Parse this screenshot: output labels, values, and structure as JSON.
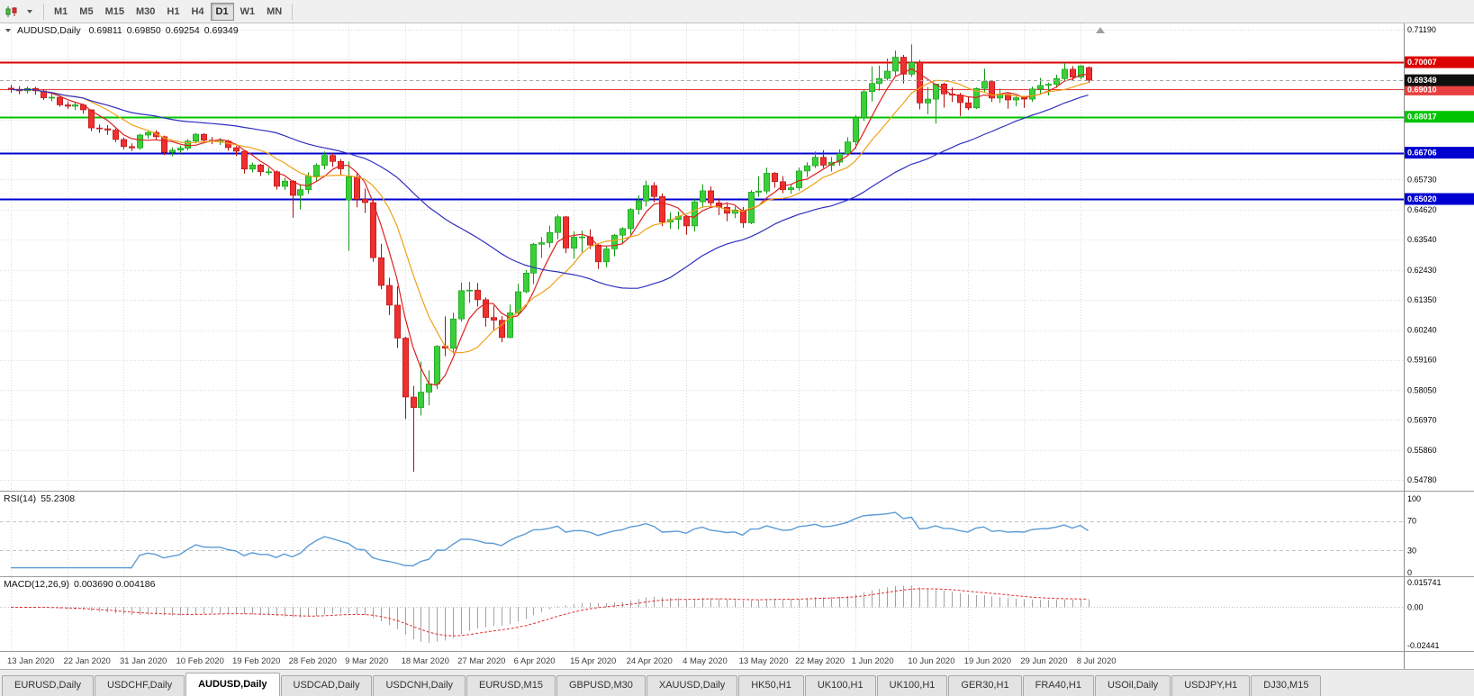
{
  "toolbar": {
    "timeframes": [
      "M1",
      "M5",
      "M15",
      "M30",
      "H1",
      "H4",
      "D1",
      "W1",
      "MN"
    ],
    "active_timeframe": "D1"
  },
  "chart_data": {
    "type": "candlestick",
    "symbol": "AUDUSD,Daily",
    "ohlc_display": {
      "open": "0.69811",
      "high": "0.69850",
      "low": "0.69254",
      "close": "0.69349"
    },
    "ylim": [
      0.54387,
      0.7142
    ],
    "y_ticks": [
      "0.71190",
      "0.65730",
      "0.64620",
      "0.63540",
      "0.62430",
      "0.61350",
      "0.60240",
      "0.59160",
      "0.58050",
      "0.56970",
      "0.55860",
      "0.54780"
    ],
    "x_labels": [
      {
        "index": 0,
        "label": "13 Jan 2020"
      },
      {
        "index": 7,
        "label": "22 Jan 2020"
      },
      {
        "index": 14,
        "label": "31 Jan 2020"
      },
      {
        "index": 21,
        "label": "10 Feb 2020"
      },
      {
        "index": 28,
        "label": "19 Feb 2020"
      },
      {
        "index": 35,
        "label": "28 Feb 2020"
      },
      {
        "index": 42,
        "label": "9 Mar 2020"
      },
      {
        "index": 49,
        "label": "18 Mar 2020"
      },
      {
        "index": 56,
        "label": "27 Mar 2020"
      },
      {
        "index": 63,
        "label": "6 Apr 2020"
      },
      {
        "index": 70,
        "label": "15 Apr 2020"
      },
      {
        "index": 77,
        "label": "24 Apr 2020"
      },
      {
        "index": 84,
        "label": "4 May 2020"
      },
      {
        "index": 91,
        "label": "13 May 2020"
      },
      {
        "index": 98,
        "label": "22 May 2020"
      },
      {
        "index": 105,
        "label": "1 Jun 2020"
      },
      {
        "index": 112,
        "label": "10 Jun 2020"
      },
      {
        "index": 119,
        "label": "19 Jun 2020"
      },
      {
        "index": 126,
        "label": "29 Jun 2020"
      },
      {
        "index": 133,
        "label": "8 Jul 2020"
      }
    ],
    "candles": [
      [
        0.6906,
        0.6918,
        0.6889,
        0.6902
      ],
      [
        0.6902,
        0.6913,
        0.6884,
        0.6896
      ],
      [
        0.6896,
        0.6912,
        0.6887,
        0.6905
      ],
      [
        0.6905,
        0.6911,
        0.6882,
        0.6896
      ],
      [
        0.6896,
        0.6902,
        0.6863,
        0.6871
      ],
      [
        0.6871,
        0.6889,
        0.6858,
        0.6873
      ],
      [
        0.6873,
        0.6879,
        0.6838,
        0.6845
      ],
      [
        0.6845,
        0.6858,
        0.683,
        0.684
      ],
      [
        0.684,
        0.6856,
        0.6826,
        0.6845
      ],
      [
        0.6845,
        0.685,
        0.6813,
        0.6827
      ],
      [
        0.6827,
        0.6829,
        0.6749,
        0.6761
      ],
      [
        0.6761,
        0.6773,
        0.6743,
        0.6758
      ],
      [
        0.6758,
        0.6771,
        0.6736,
        0.6753
      ],
      [
        0.6753,
        0.6759,
        0.6709,
        0.6719
      ],
      [
        0.6719,
        0.6726,
        0.6683,
        0.6693
      ],
      [
        0.6693,
        0.6705,
        0.6677,
        0.6688
      ],
      [
        0.6688,
        0.674,
        0.6682,
        0.6735
      ],
      [
        0.6735,
        0.675,
        0.6723,
        0.6745
      ],
      [
        0.6745,
        0.6752,
        0.6718,
        0.6729
      ],
      [
        0.6729,
        0.6733,
        0.6662,
        0.6672
      ],
      [
        0.6672,
        0.669,
        0.6658,
        0.668
      ],
      [
        0.668,
        0.6696,
        0.6668,
        0.6687
      ],
      [
        0.6687,
        0.672,
        0.6679,
        0.6713
      ],
      [
        0.6713,
        0.6743,
        0.6705,
        0.6738
      ],
      [
        0.6738,
        0.6742,
        0.6705,
        0.6716
      ],
      [
        0.6716,
        0.6728,
        0.6702,
        0.6713
      ],
      [
        0.6713,
        0.6724,
        0.6699,
        0.6713
      ],
      [
        0.6713,
        0.6718,
        0.6678,
        0.6689
      ],
      [
        0.6689,
        0.6695,
        0.6659,
        0.6676
      ],
      [
        0.6676,
        0.668,
        0.6595,
        0.6611
      ],
      [
        0.6611,
        0.6635,
        0.6599,
        0.6626
      ],
      [
        0.6626,
        0.663,
        0.6586,
        0.6601
      ],
      [
        0.6601,
        0.6618,
        0.6589,
        0.6601
      ],
      [
        0.6601,
        0.6606,
        0.6536,
        0.6548
      ],
      [
        0.6548,
        0.6579,
        0.6535,
        0.6567
      ],
      [
        0.6567,
        0.6571,
        0.6434,
        0.6515
      ],
      [
        0.6515,
        0.6556,
        0.6464,
        0.6536
      ],
      [
        0.6536,
        0.6599,
        0.6521,
        0.6585
      ],
      [
        0.6585,
        0.6632,
        0.6566,
        0.6625
      ],
      [
        0.6625,
        0.6675,
        0.661,
        0.6661
      ],
      [
        0.6661,
        0.6669,
        0.6619,
        0.6639
      ],
      [
        0.6639,
        0.6647,
        0.6591,
        0.6612
      ],
      [
        0.6498,
        0.6639,
        0.6313,
        0.6583
      ],
      [
        0.6583,
        0.6596,
        0.6472,
        0.6501
      ],
      [
        0.6501,
        0.654,
        0.6451,
        0.6489
      ],
      [
        0.6489,
        0.6496,
        0.6273,
        0.6288
      ],
      [
        0.6288,
        0.6339,
        0.6173,
        0.6187
      ],
      [
        0.6187,
        0.6215,
        0.6079,
        0.6115
      ],
      [
        0.6115,
        0.6184,
        0.5959,
        0.5995
      ],
      [
        0.5995,
        0.6,
        0.57,
        0.578
      ],
      [
        0.578,
        0.5821,
        0.5508,
        0.5742
      ],
      [
        0.5742,
        0.5909,
        0.5713,
        0.5798
      ],
      [
        0.5798,
        0.5877,
        0.575,
        0.5828
      ],
      [
        0.5828,
        0.5969,
        0.5809,
        0.5965
      ],
      [
        0.5965,
        0.6074,
        0.5929,
        0.5958
      ],
      [
        0.5958,
        0.6088,
        0.5939,
        0.6065
      ],
      [
        0.6065,
        0.6198,
        0.6055,
        0.6168
      ],
      [
        0.6168,
        0.62,
        0.6123,
        0.617
      ],
      [
        0.617,
        0.6196,
        0.611,
        0.6135
      ],
      [
        0.6135,
        0.6143,
        0.6037,
        0.607
      ],
      [
        0.607,
        0.6113,
        0.6021,
        0.606
      ],
      [
        0.606,
        0.6075,
        0.598,
        0.5997
      ],
      [
        0.5997,
        0.6117,
        0.5994,
        0.6087
      ],
      [
        0.6087,
        0.6193,
        0.6077,
        0.6164
      ],
      [
        0.6164,
        0.6243,
        0.6158,
        0.6232
      ],
      [
        0.6232,
        0.6342,
        0.6192,
        0.6337
      ],
      [
        0.6337,
        0.6363,
        0.6287,
        0.6343
      ],
      [
        0.6343,
        0.6405,
        0.6325,
        0.638
      ],
      [
        0.638,
        0.6445,
        0.6355,
        0.6437
      ],
      [
        0.6437,
        0.644,
        0.6304,
        0.6323
      ],
      [
        0.6323,
        0.6385,
        0.6285,
        0.6363
      ],
      [
        0.6363,
        0.6387,
        0.6305,
        0.6364
      ],
      [
        0.6364,
        0.6391,
        0.632,
        0.6334
      ],
      [
        0.6334,
        0.6341,
        0.6247,
        0.6273
      ],
      [
        0.6273,
        0.6329,
        0.6253,
        0.632
      ],
      [
        0.632,
        0.6374,
        0.6293,
        0.637
      ],
      [
        0.637,
        0.6399,
        0.6341,
        0.6394
      ],
      [
        0.6394,
        0.6469,
        0.6373,
        0.6464
      ],
      [
        0.6464,
        0.6515,
        0.6445,
        0.6495
      ],
      [
        0.6495,
        0.6569,
        0.6475,
        0.6551
      ],
      [
        0.6551,
        0.6563,
        0.649,
        0.6511
      ],
      [
        0.6511,
        0.6522,
        0.6403,
        0.6418
      ],
      [
        0.6418,
        0.6453,
        0.6393,
        0.6427
      ],
      [
        0.6427,
        0.6457,
        0.6391,
        0.6438
      ],
      [
        0.6438,
        0.6443,
        0.6372,
        0.6404
      ],
      [
        0.6404,
        0.6501,
        0.6384,
        0.6492
      ],
      [
        0.6492,
        0.6556,
        0.647,
        0.6532
      ],
      [
        0.6532,
        0.6548,
        0.6471,
        0.6488
      ],
      [
        0.6488,
        0.6505,
        0.6443,
        0.6472
      ],
      [
        0.6472,
        0.649,
        0.6421,
        0.645
      ],
      [
        0.645,
        0.6475,
        0.6432,
        0.6462
      ],
      [
        0.6462,
        0.6473,
        0.6397,
        0.6415
      ],
      [
        0.6415,
        0.6534,
        0.641,
        0.6527
      ],
      [
        0.6527,
        0.6585,
        0.651,
        0.6531
      ],
      [
        0.6531,
        0.6616,
        0.652,
        0.6596
      ],
      [
        0.6596,
        0.66,
        0.6543,
        0.6565
      ],
      [
        0.6565,
        0.6585,
        0.6523,
        0.6536
      ],
      [
        0.6536,
        0.6557,
        0.6521,
        0.6543
      ],
      [
        0.6543,
        0.6616,
        0.6533,
        0.6604
      ],
      [
        0.6604,
        0.6636,
        0.6582,
        0.6623
      ],
      [
        0.6623,
        0.6675,
        0.6615,
        0.6654
      ],
      [
        0.6654,
        0.668,
        0.6615,
        0.6625
      ],
      [
        0.6625,
        0.6655,
        0.6602,
        0.6636
      ],
      [
        0.6636,
        0.6683,
        0.6623,
        0.6667
      ],
      [
        0.6667,
        0.6727,
        0.666,
        0.671
      ],
      [
        0.671,
        0.6808,
        0.6685,
        0.6798
      ],
      [
        0.6798,
        0.69,
        0.6787,
        0.6893
      ],
      [
        0.6893,
        0.6985,
        0.6857,
        0.6923
      ],
      [
        0.6923,
        0.6988,
        0.6897,
        0.6941
      ],
      [
        0.6941,
        0.7014,
        0.6934,
        0.6968
      ],
      [
        0.6968,
        0.7043,
        0.6952,
        0.7019
      ],
      [
        0.7019,
        0.7027,
        0.6923,
        0.6957
      ],
      [
        0.6957,
        0.7066,
        0.6948,
        0.7
      ],
      [
        0.7,
        0.7008,
        0.6829,
        0.6852
      ],
      [
        0.6852,
        0.691,
        0.6811,
        0.6866
      ],
      [
        0.6866,
        0.6922,
        0.6777,
        0.6921
      ],
      [
        0.6921,
        0.6926,
        0.6835,
        0.6885
      ],
      [
        0.6885,
        0.6908,
        0.6855,
        0.6881
      ],
      [
        0.6881,
        0.6889,
        0.6805,
        0.6853
      ],
      [
        0.6853,
        0.6873,
        0.6826,
        0.6834
      ],
      [
        0.6834,
        0.6908,
        0.683,
        0.6905
      ],
      [
        0.6905,
        0.6977,
        0.6893,
        0.693
      ],
      [
        0.693,
        0.6934,
        0.6856,
        0.687
      ],
      [
        0.687,
        0.6904,
        0.6852,
        0.6884
      ],
      [
        0.6884,
        0.6889,
        0.6831,
        0.6863
      ],
      [
        0.6863,
        0.6876,
        0.684,
        0.6871
      ],
      [
        0.6871,
        0.6877,
        0.6834,
        0.6866
      ],
      [
        0.6866,
        0.6912,
        0.6856,
        0.6903
      ],
      [
        0.6903,
        0.6943,
        0.6884,
        0.6916
      ],
      [
        0.6916,
        0.6926,
        0.6879,
        0.692
      ],
      [
        0.692,
        0.6955,
        0.6907,
        0.6941
      ],
      [
        0.6941,
        0.6999,
        0.6934,
        0.6975
      ],
      [
        0.6975,
        0.6986,
        0.6934,
        0.6946
      ],
      [
        0.6946,
        0.699,
        0.6938,
        0.6987
      ],
      [
        0.69811,
        0.6985,
        0.69254,
        0.69349
      ]
    ],
    "moving_averages": [
      {
        "period": 5,
        "color": "#e02020"
      },
      {
        "period": 10,
        "color": "#efa118"
      },
      {
        "period": 34,
        "color": "#2f2fbf"
      }
    ],
    "levels": [
      {
        "value": 0.70007,
        "label": "0.70007",
        "color": "#dd0000",
        "width": 2
      },
      {
        "value": 0.6901,
        "label": "0.69010",
        "color": "#e84040",
        "width": 1
      },
      {
        "value": 0.68017,
        "label": "0.68017",
        "color": "#00c400",
        "width": 2
      },
      {
        "value": 0.66706,
        "label": "0.66706",
        "color": "#0000d0",
        "width": 2
      },
      {
        "value": 0.6502,
        "label": "0.65020",
        "color": "#0000d0",
        "width": 2
      }
    ],
    "current_price": {
      "value": 0.69349,
      "label": "0.69349",
      "color": "#101010"
    },
    "candle_colors": {
      "up": "#3bcf3b",
      "up_border": "#119911",
      "down": "#ef3030",
      "down_border": "#b01010"
    },
    "indicators": [
      {
        "type": "rsi",
        "label": "RSI(14)",
        "value_label": "55.2308",
        "period": 14,
        "color": "#5b9bd5",
        "levels": [
          70,
          30
        ],
        "y_ticks": [
          "100",
          "70",
          "30",
          "0"
        ],
        "ylim": [
          0,
          100
        ]
      },
      {
        "type": "macd",
        "label": "MACD(12,26,9)",
        "value_label": "0.003690 0.004186",
        "fast": 12,
        "slow": 26,
        "signal": 9,
        "histogram_color": "#a3a3a3",
        "signal_color": "#e03030",
        "y_ticks": [
          "0.015741",
          "0.00",
          "-0.02441"
        ],
        "ylim": [
          -0.02441,
          0.015741
        ]
      }
    ]
  },
  "tabs": {
    "active_index": 2,
    "items": [
      "EURUSD,Daily",
      "USDCHF,Daily",
      "AUDUSD,Daily",
      "USDCAD,Daily",
      "USDCNH,Daily",
      "EURUSD,M15",
      "GBPUSD,M30",
      "XAUUSD,Daily",
      "HK50,H1",
      "UK100,H1",
      "UK100,H1",
      "GER30,H1",
      "FRA40,H1",
      "USOil,Daily",
      "USDJPY,H1",
      "DJ30,M15"
    ]
  }
}
